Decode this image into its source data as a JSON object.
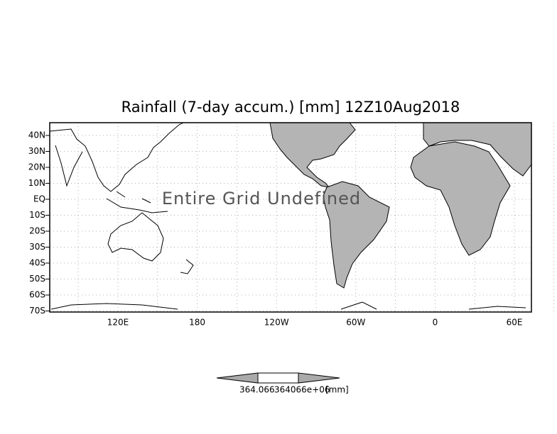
{
  "title": "Rainfall (7-day accum.) [mm] 12Z10Aug2018",
  "lat_labels": [
    "40N",
    "30N",
    "20N",
    "10N",
    "EQ",
    "10S",
    "20S",
    "30S",
    "40S",
    "50S",
    "60S",
    "70S"
  ],
  "lon_labels": [
    "120E",
    "180",
    "120W",
    "60W",
    "0",
    "60E"
  ],
  "message": "Entire Grid Undefined",
  "colorbar": {
    "labels": [
      "364.066",
      "364066e+06"
    ],
    "unit": "[mm]"
  }
}
